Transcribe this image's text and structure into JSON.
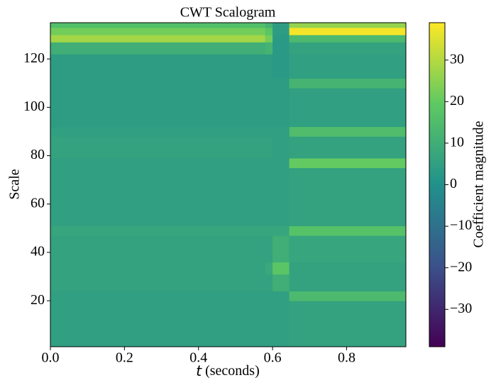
{
  "chart_data": {
    "type": "heatmap",
    "title": "CWT Scalogram",
    "xlabel_var": "t",
    "xlabel": "(seconds)",
    "ylabel": "Scale",
    "colorbar_label": "Coefficient magnitude",
    "x_edges": [
      0,
      0.58,
      0.6,
      0.645,
      0.96
    ],
    "y_edges": [
      1,
      20,
      24,
      31,
      36,
      47,
      51,
      75,
      79,
      88,
      92,
      108,
      112,
      122,
      127,
      130,
      133,
      135
    ],
    "values": [
      [
        5,
        5,
        5,
        6
      ],
      [
        5,
        5,
        5,
        14
      ],
      [
        6,
        6,
        10,
        6
      ],
      [
        6,
        8,
        18,
        6
      ],
      [
        6,
        6,
        10,
        7
      ],
      [
        7,
        7,
        7,
        17
      ],
      [
        5,
        5,
        5,
        6
      ],
      [
        5,
        5,
        5,
        20
      ],
      [
        6,
        6,
        5,
        6
      ],
      [
        5,
        5,
        5,
        15
      ],
      [
        4,
        4,
        4,
        5
      ],
      [
        4,
        4,
        4,
        12
      ],
      [
        4,
        4,
        3,
        5
      ],
      [
        10,
        12,
        3,
        6
      ],
      [
        28,
        22,
        3,
        14
      ],
      [
        22,
        18,
        4,
        38
      ],
      [
        16,
        12,
        4,
        26
      ]
    ],
    "xlim": [
      0,
      0.96
    ],
    "ylim": [
      1,
      135
    ],
    "xticks": [
      {
        "value": 0,
        "label": "0.0"
      },
      0.2,
      0.4,
      0.6,
      0.8
    ],
    "yticks": [
      20,
      40,
      60,
      80,
      100,
      120
    ],
    "clim": [
      -39,
      39
    ],
    "cticks": [
      {
        "value": -30,
        "label": "−30"
      },
      {
        "value": -20,
        "label": "−20"
      },
      {
        "value": -10,
        "label": "−10"
      },
      0,
      10,
      20,
      30
    ],
    "colormap": [
      "#440154",
      "#3b528b",
      "#21918c",
      "#5ec962",
      "#fde725"
    ]
  }
}
